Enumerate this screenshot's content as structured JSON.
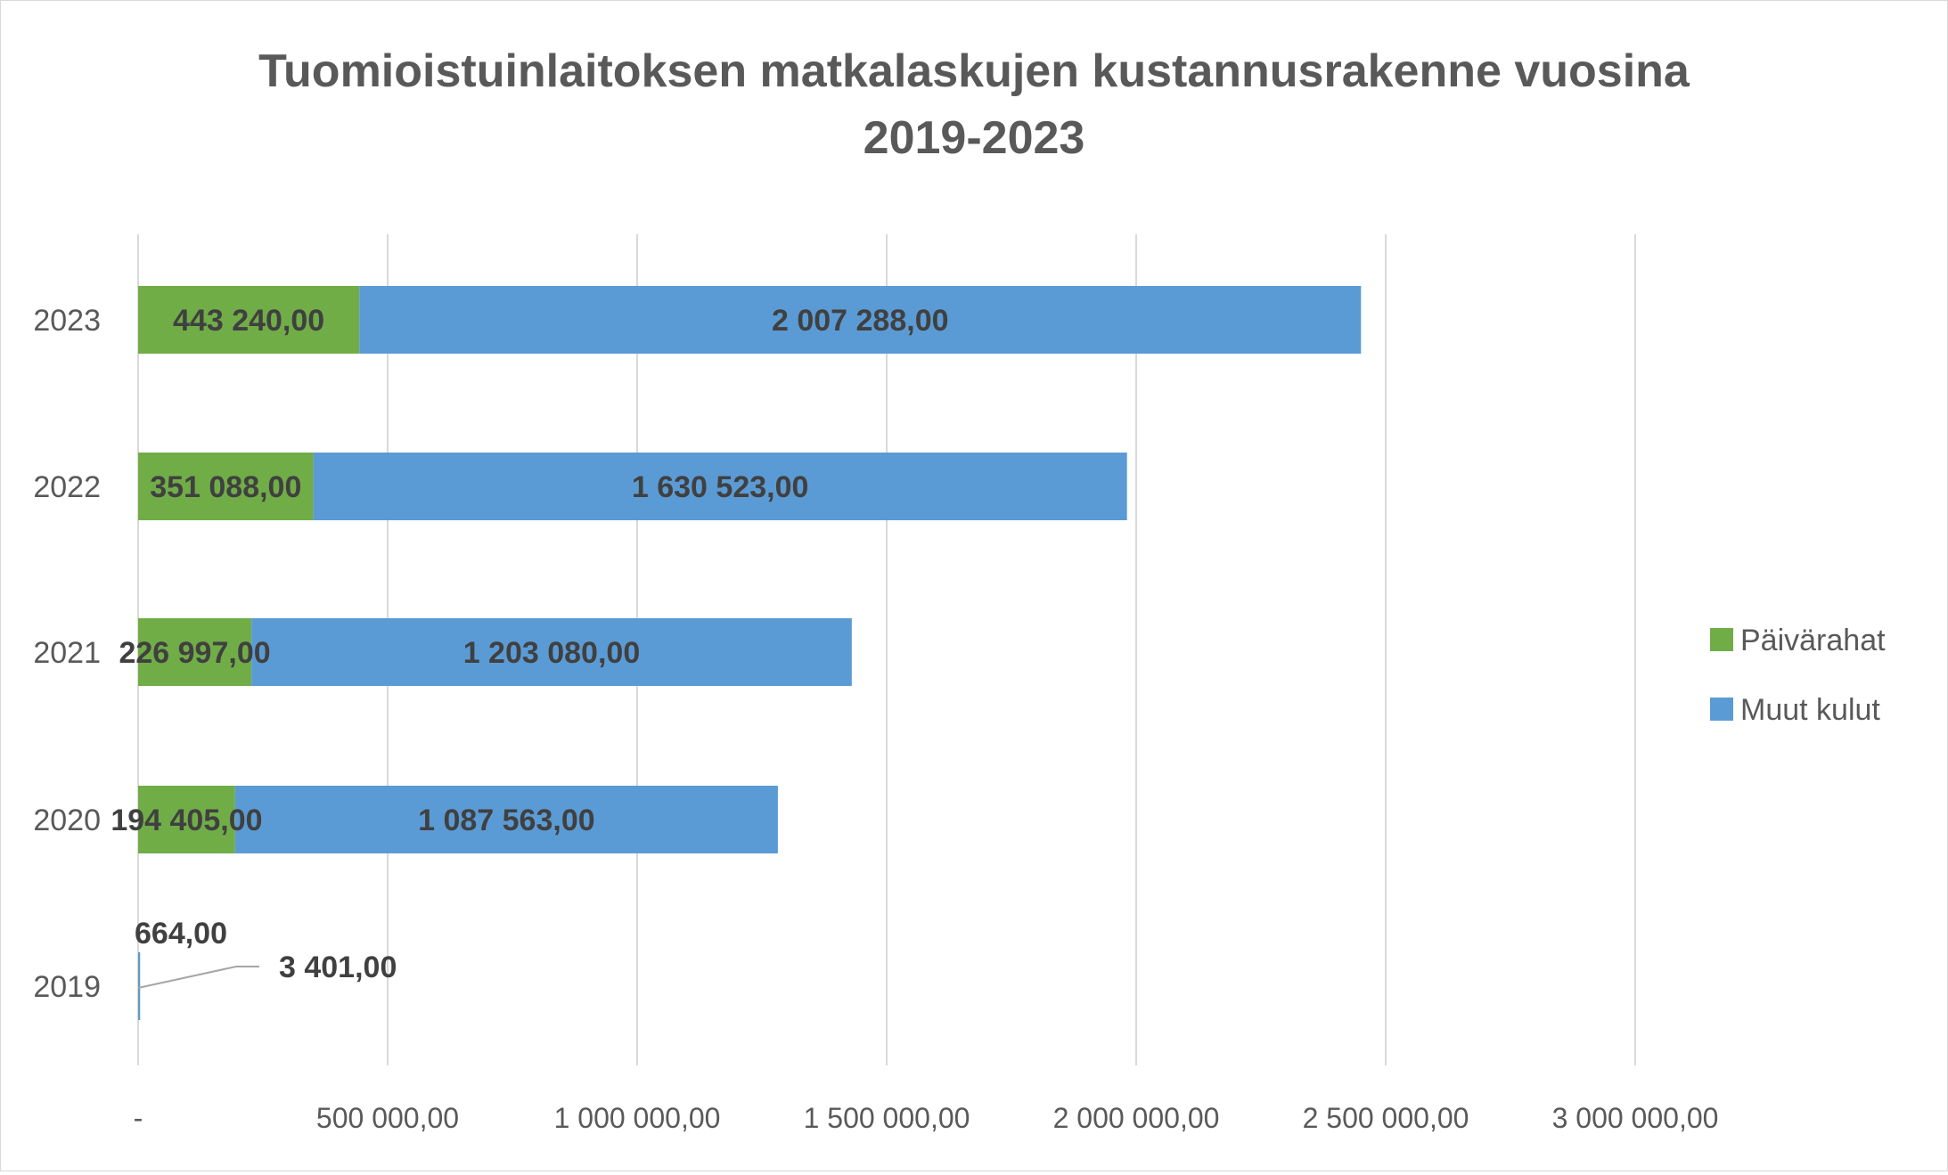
{
  "chart_data": {
    "type": "bar",
    "orientation": "horizontal",
    "stacked": true,
    "title": "Tuomioistuinlaitoksen matkalaskujen kustannusrakenne vuosina 2019-2023",
    "title_lines": [
      "Tuomioistuinlaitoksen matkalaskujen kustannusrakenne vuosina",
      "2019-2023"
    ],
    "categories": [
      "2019",
      "2020",
      "2021",
      "2022",
      "2023"
    ],
    "series": [
      {
        "name": "Päivärahat",
        "color": "#70ad47",
        "values": [
          664,
          194405,
          226997,
          351088,
          443240
        ],
        "labels": [
          "664,00",
          "194 405,00",
          "226 997,00",
          "351 088,00",
          "443 240,00"
        ]
      },
      {
        "name": "Muut kulut",
        "color": "#5b9bd5",
        "values": [
          3401,
          1087563,
          1203080,
          1630523,
          2007288
        ],
        "labels": [
          "3 401,00",
          "1 087 563,00",
          "1 203 080,00",
          "1 630 523,00",
          "2 007 288,00"
        ]
      }
    ],
    "xlim": [
      0,
      3000000
    ],
    "x_ticks": [
      0,
      500000,
      1000000,
      1500000,
      2000000,
      2500000,
      3000000
    ],
    "x_tick_labels": [
      "-",
      "500 000,00",
      "1 000 000,00",
      "1 500 000,00",
      "2 000 000,00",
      "2 500 000,00",
      "3 000 000,00"
    ],
    "grid": "vertical",
    "legend_position": "right"
  }
}
